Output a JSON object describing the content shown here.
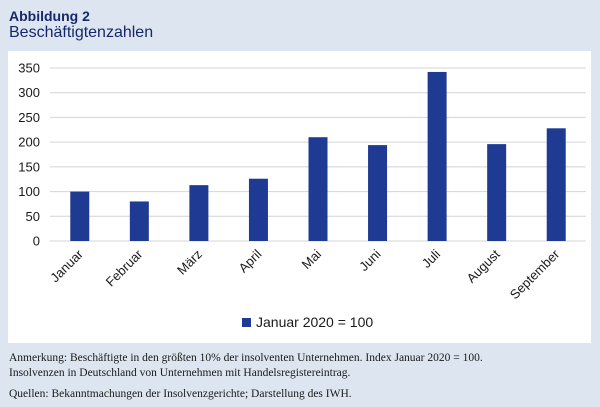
{
  "figure": {
    "label": "Abbildung 2",
    "title": "Beschäftigtenzahlen"
  },
  "notes": {
    "line1": "Anmerkung: Beschäftigte in den größten 10% der insolventen Unternehmen. Index Januar 2020 = 100.",
    "line2": "Insolvenzen in Deutschland von Unternehmen mit Handelsregistereintrag.",
    "sources": "Quellen: Bekanntmachungen der Insolvenzgerichte; Darstellung des IWH."
  },
  "chart_data": {
    "type": "bar",
    "title": "",
    "xlabel": "",
    "ylabel": "",
    "categories": [
      "Januar",
      "Februar",
      "März",
      "April",
      "Mai",
      "Juni",
      "Juli",
      "August",
      "September"
    ],
    "series": [
      {
        "name": "Januar 2020 = 100",
        "color": "#1f3a93",
        "values": [
          100,
          80,
          113,
          126,
          210,
          194,
          342,
          196,
          228
        ]
      }
    ],
    "ylim": [
      0,
      350
    ],
    "yticks": [
      0,
      50,
      100,
      150,
      200,
      250,
      300,
      350
    ],
    "grid": true,
    "legend_position": "bottom-center"
  }
}
